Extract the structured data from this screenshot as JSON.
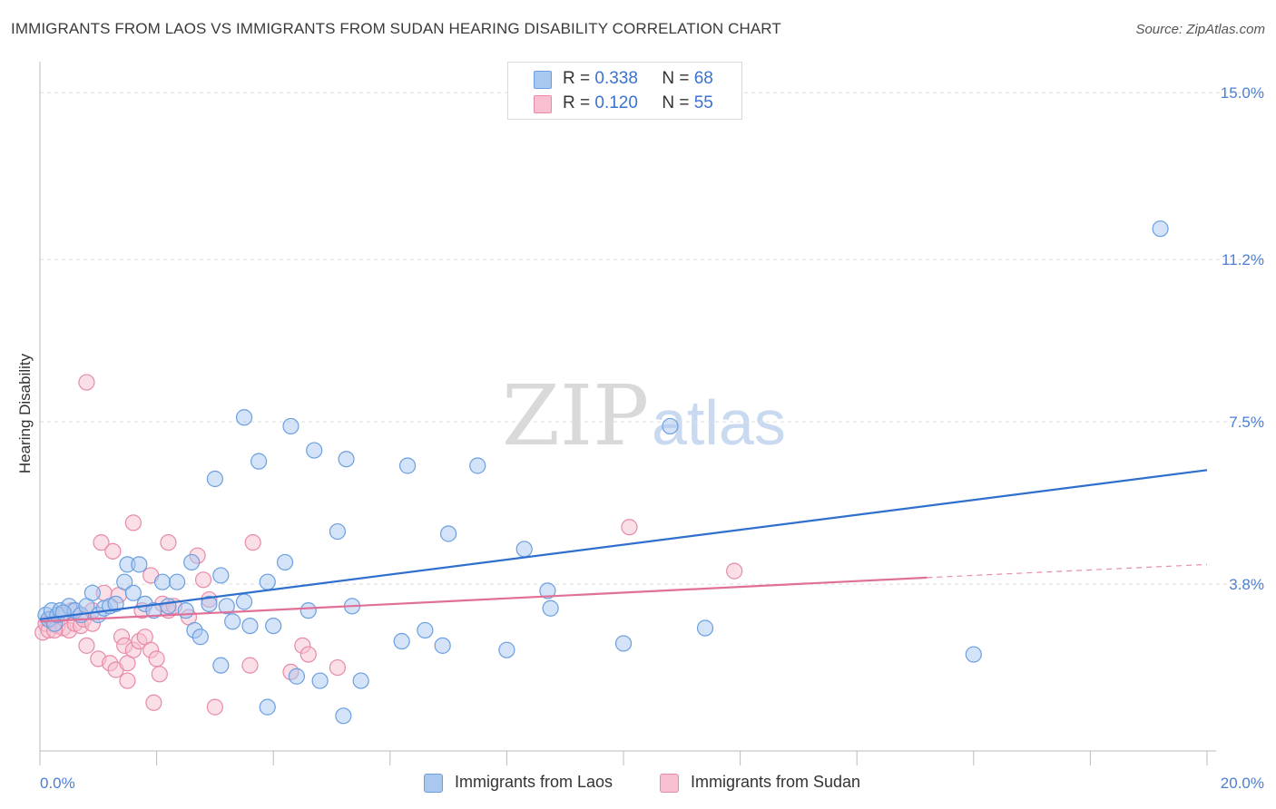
{
  "title": "IMMIGRANTS FROM LAOS VS IMMIGRANTS FROM SUDAN HEARING DISABILITY CORRELATION CHART",
  "source": "Source: ZipAtlas.com",
  "watermark": {
    "zip": "ZIP",
    "atlas": "atlas"
  },
  "legend": {
    "rows": [
      {
        "r_label": "R =",
        "r_value": "0.338",
        "n_label": "N =",
        "n_value": "68",
        "color": "#a9c8f0",
        "border": "#6b9fe0"
      },
      {
        "r_label": "R =",
        "r_value": "0.120",
        "n_label": "N =",
        "n_value": "55",
        "color": "#f7bfd0",
        "border": "#e88aa8"
      }
    ]
  },
  "bottom_legend": [
    {
      "label": "Immigrants from Laos",
      "color": "#a9c8f0",
      "border": "#6b9fe0"
    },
    {
      "label": "Immigrants from Sudan",
      "color": "#f7bfd0",
      "border": "#e88aa8"
    }
  ],
  "chart_data": {
    "type": "scatter",
    "ylabel": "Hearing Disability",
    "xlim": [
      0,
      20
    ],
    "ylim": [
      0,
      15.5
    ],
    "y_ticks": [
      {
        "value": 3.8,
        "label": "3.8%"
      },
      {
        "value": 7.5,
        "label": "7.5%"
      },
      {
        "value": 11.2,
        "label": "11.2%"
      },
      {
        "value": 15.0,
        "label": "15.0%"
      }
    ],
    "x_tick_labels": [
      {
        "value": 0,
        "label": "0.0%"
      },
      {
        "value": 20,
        "label": "20.0%"
      }
    ],
    "grid": "horizontal dashed",
    "legend_position": "top-center",
    "series": [
      {
        "name": "Immigrants from Laos",
        "color": "#6b9fe0",
        "fill": "#a9c8f0",
        "trend": {
          "x": [
            0,
            20
          ],
          "y": [
            3.0,
            6.4
          ],
          "color": "#2f6fce"
        },
        "points": [
          [
            0.1,
            3.1
          ],
          [
            0.15,
            3.0
          ],
          [
            0.2,
            3.2
          ],
          [
            0.25,
            2.9
          ],
          [
            0.3,
            3.1
          ],
          [
            0.35,
            3.2
          ],
          [
            0.5,
            3.3
          ],
          [
            0.6,
            3.2
          ],
          [
            0.7,
            3.1
          ],
          [
            0.8,
            3.3
          ],
          [
            0.9,
            3.6
          ],
          [
            1.0,
            3.1
          ],
          [
            1.1,
            3.25
          ],
          [
            1.2,
            3.3
          ],
          [
            1.3,
            3.35
          ],
          [
            1.45,
            3.85
          ],
          [
            1.5,
            4.25
          ],
          [
            1.6,
            3.6
          ],
          [
            1.7,
            4.25
          ],
          [
            1.8,
            3.35
          ],
          [
            1.95,
            3.2
          ],
          [
            2.1,
            3.85
          ],
          [
            2.2,
            3.3
          ],
          [
            2.35,
            3.85
          ],
          [
            2.5,
            3.2
          ],
          [
            2.6,
            4.3
          ],
          [
            2.65,
            2.75
          ],
          [
            2.75,
            2.6
          ],
          [
            2.9,
            3.35
          ],
          [
            3.0,
            6.2
          ],
          [
            3.1,
            4.0
          ],
          [
            3.1,
            1.95
          ],
          [
            3.2,
            3.3
          ],
          [
            3.3,
            2.95
          ],
          [
            3.5,
            3.4
          ],
          [
            3.5,
            7.6
          ],
          [
            3.6,
            2.85
          ],
          [
            3.75,
            6.6
          ],
          [
            3.9,
            3.85
          ],
          [
            3.9,
            1.0
          ],
          [
            4.0,
            2.85
          ],
          [
            4.2,
            4.3
          ],
          [
            4.3,
            7.4
          ],
          [
            4.4,
            1.7
          ],
          [
            4.6,
            3.2
          ],
          [
            4.7,
            6.85
          ],
          [
            4.8,
            1.6
          ],
          [
            5.1,
            5.0
          ],
          [
            5.2,
            0.8
          ],
          [
            5.25,
            6.65
          ],
          [
            5.35,
            3.3
          ],
          [
            5.5,
            1.6
          ],
          [
            6.2,
            2.5
          ],
          [
            6.3,
            6.5
          ],
          [
            6.6,
            2.75
          ],
          [
            6.9,
            2.4
          ],
          [
            7.0,
            4.95
          ],
          [
            7.5,
            6.5
          ],
          [
            8.0,
            2.3
          ],
          [
            8.3,
            4.6
          ],
          [
            8.7,
            3.65
          ],
          [
            8.75,
            3.25
          ],
          [
            10.0,
            2.45
          ],
          [
            10.8,
            7.4
          ],
          [
            11.4,
            2.8
          ],
          [
            16.0,
            2.2
          ],
          [
            19.2,
            11.9
          ],
          [
            0.4,
            3.15
          ]
        ]
      },
      {
        "name": "Immigrants from Sudan",
        "color": "#e88aa8",
        "fill": "#f7bfd0",
        "trend": {
          "x": [
            0,
            15.2
          ],
          "y": [
            2.95,
            3.95
          ],
          "color": "#e07098",
          "dashed_extension": {
            "x": [
              15.2,
              20
            ],
            "y": [
              3.95,
              4.25
            ]
          }
        },
        "points": [
          [
            0.05,
            2.7
          ],
          [
            0.1,
            2.9
          ],
          [
            0.15,
            2.75
          ],
          [
            0.2,
            3.0
          ],
          [
            0.3,
            2.85
          ],
          [
            0.35,
            3.1
          ],
          [
            0.4,
            2.8
          ],
          [
            0.5,
            2.75
          ],
          [
            0.55,
            3.2
          ],
          [
            0.6,
            2.9
          ],
          [
            0.7,
            2.85
          ],
          [
            0.75,
            3.0
          ],
          [
            0.8,
            2.4
          ],
          [
            0.8,
            8.4
          ],
          [
            0.9,
            2.9
          ],
          [
            0.9,
            3.2
          ],
          [
            1.0,
            2.1
          ],
          [
            1.05,
            4.75
          ],
          [
            1.1,
            3.6
          ],
          [
            1.2,
            2.0
          ],
          [
            1.25,
            4.55
          ],
          [
            1.3,
            1.85
          ],
          [
            1.35,
            3.55
          ],
          [
            1.4,
            2.6
          ],
          [
            1.45,
            2.4
          ],
          [
            1.5,
            1.6
          ],
          [
            1.5,
            2.0
          ],
          [
            1.6,
            2.3
          ],
          [
            1.6,
            5.2
          ],
          [
            1.7,
            2.5
          ],
          [
            1.75,
            3.2
          ],
          [
            1.8,
            2.6
          ],
          [
            1.9,
            2.3
          ],
          [
            1.9,
            4.0
          ],
          [
            1.95,
            1.1
          ],
          [
            2.0,
            2.1
          ],
          [
            2.05,
            1.75
          ],
          [
            2.1,
            3.35
          ],
          [
            2.2,
            4.75
          ],
          [
            2.2,
            3.2
          ],
          [
            2.3,
            3.3
          ],
          [
            2.55,
            3.05
          ],
          [
            2.7,
            4.45
          ],
          [
            2.8,
            3.9
          ],
          [
            2.9,
            3.45
          ],
          [
            3.0,
            1.0
          ],
          [
            3.6,
            1.95
          ],
          [
            3.65,
            4.75
          ],
          [
            4.3,
            1.8
          ],
          [
            4.5,
            2.4
          ],
          [
            4.6,
            2.2
          ],
          [
            5.1,
            1.9
          ],
          [
            10.1,
            5.1
          ],
          [
            11.9,
            4.1
          ],
          [
            0.25,
            2.75
          ]
        ]
      }
    ]
  }
}
